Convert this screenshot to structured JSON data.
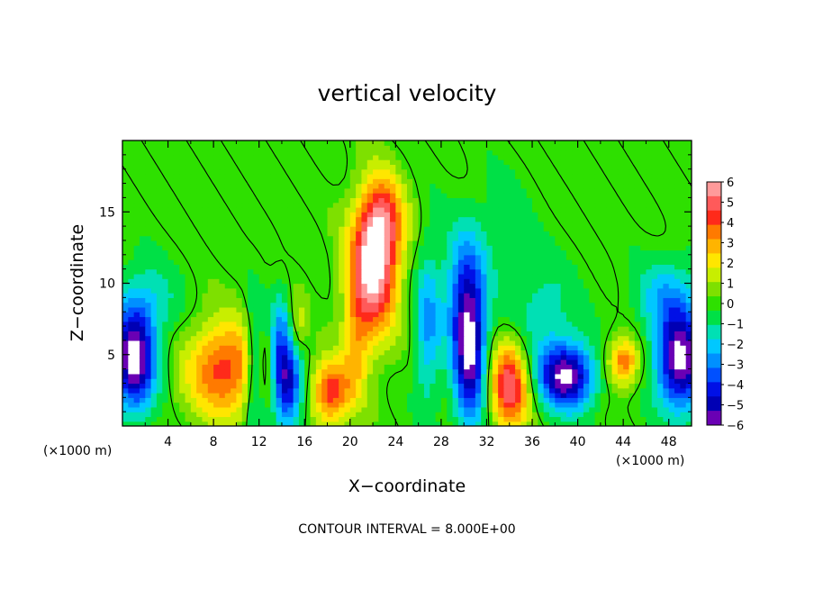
{
  "chart_data": {
    "type": "heatmap",
    "title": "vertical velocity",
    "xlabel": "X−coordinate",
    "ylabel": "Z−coordinate",
    "x_unit": "(×1000 m)",
    "z_unit": "(×1000 m)",
    "xlim": [
      0,
      50
    ],
    "ylim": [
      0,
      20
    ],
    "x_ticks": [
      4,
      8,
      12,
      16,
      20,
      24,
      28,
      32,
      36,
      40,
      44,
      48
    ],
    "y_ticks": [
      5,
      10,
      15
    ],
    "colorbar": {
      "min": -6,
      "max": 6,
      "ticks": [
        "6",
        "5",
        "4",
        "3",
        "2",
        "1",
        "0",
        "−1",
        "−2",
        "−3",
        "−4",
        "−5",
        "−6"
      ],
      "colors": [
        "#ff9a9a",
        "#ff5a5a",
        "#ff2a1a",
        "#ff7a00",
        "#ffb400",
        "#ffe600",
        "#c8ee00",
        "#7ee000",
        "#2ee000",
        "#00e046",
        "#00e0b4",
        "#00c8ff",
        "#0090ff",
        "#0050ff",
        "#0010e6",
        "#0000b4",
        "#6a00b4"
      ]
    },
    "footer": "CONTOUR INTERVAL = 8.000E+00",
    "features": [
      {
        "x": 22,
        "z": 11,
        "sx": 1.5,
        "sz": 3.4,
        "w": 6.2
      },
      {
        "x": 23,
        "z": 14.5,
        "sx": 1.3,
        "sz": 2.2,
        "w": 3.2
      },
      {
        "x": 9,
        "z": 4,
        "sx": 2.4,
        "sz": 2.4,
        "w": 4.3
      },
      {
        "x": 18.3,
        "z": 2.4,
        "sx": 1.2,
        "sz": 1.6,
        "w": 4.4
      },
      {
        "x": 34,
        "z": 2.8,
        "sx": 1.2,
        "sz": 2.2,
        "w": 5.2
      },
      {
        "x": 44,
        "z": 4.5,
        "sx": 1.0,
        "sz": 1.2,
        "w": 3.8
      },
      {
        "x": 20.5,
        "z": 5.5,
        "sx": 0.8,
        "sz": 3.0,
        "w": 2.0
      },
      {
        "x": 15.5,
        "z": 7.0,
        "sx": 0.5,
        "sz": 1.5,
        "w": 1.5
      },
      {
        "x": 1,
        "z": 4.5,
        "sx": 1.3,
        "sz": 2.4,
        "w": -6.4
      },
      {
        "x": 14.5,
        "z": 3.0,
        "sx": 0.9,
        "sz": 2.2,
        "w": -5.0
      },
      {
        "x": 13.8,
        "z": 6.0,
        "sx": 0.6,
        "sz": 2.5,
        "w": -2.5
      },
      {
        "x": 30.5,
        "z": 5.0,
        "sx": 1.0,
        "sz": 3.6,
        "w": -5.6
      },
      {
        "x": 39,
        "z": 3.5,
        "sx": 1.7,
        "sz": 1.6,
        "w": -6.2
      },
      {
        "x": 49,
        "z": 4.5,
        "sx": 1.5,
        "sz": 2.4,
        "w": -6.2
      },
      {
        "x": 11.6,
        "z": 4.0,
        "sx": 0.6,
        "sz": 3.0,
        "w": -3.0
      },
      {
        "x": 26.8,
        "z": 7.0,
        "sx": 0.8,
        "sz": 4.0,
        "w": -2.5
      },
      {
        "x": 30,
        "z": 9.5,
        "sx": 1.3,
        "sz": 3.0,
        "w": -2.8
      },
      {
        "x": 2,
        "z": 8.5,
        "sx": 2.0,
        "sz": 2.0,
        "w": -1.8
      },
      {
        "x": 48,
        "z": 9.0,
        "sx": 2.0,
        "sz": 2.0,
        "w": -2.2
      },
      {
        "x": 37,
        "z": 8.0,
        "sx": 2.0,
        "sz": 2.5,
        "w": -1.5
      },
      {
        "x": 33,
        "z": 13.5,
        "sx": 2.0,
        "sz": 3.0,
        "w": -0.7
      }
    ]
  }
}
